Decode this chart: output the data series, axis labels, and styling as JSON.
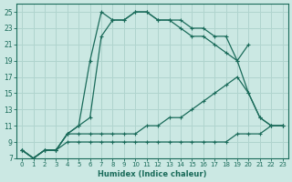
{
  "xlabel": "Humidex (Indice chaleur)",
  "bg_color": "#cbe8e3",
  "grid_color": "#b0d4ce",
  "line_color": "#1a6b5a",
  "xlim": [
    -0.5,
    23.5
  ],
  "ylim": [
    7,
    26
  ],
  "xticks": [
    0,
    1,
    2,
    3,
    4,
    5,
    6,
    7,
    8,
    9,
    10,
    11,
    12,
    13,
    14,
    15,
    16,
    17,
    18,
    19,
    20,
    21,
    22,
    23
  ],
  "yticks": [
    7,
    9,
    11,
    13,
    15,
    17,
    19,
    21,
    23,
    25
  ],
  "lines": [
    {
      "x": [
        0,
        1,
        2,
        3,
        4,
        5,
        6,
        7,
        8,
        9,
        10,
        11,
        12,
        13,
        14,
        15,
        16,
        17,
        18,
        19,
        20
      ],
      "y": [
        8,
        7,
        8,
        8,
        10,
        11,
        19,
        25,
        24,
        24,
        25,
        25,
        24,
        24,
        24,
        23,
        23,
        22,
        22,
        19,
        21
      ]
    },
    {
      "x": [
        0,
        1,
        2,
        3,
        4,
        5,
        6,
        7,
        8,
        9,
        10,
        11,
        12,
        13,
        14,
        15,
        16,
        17,
        18,
        19,
        20,
        21,
        22,
        23
      ],
      "y": [
        8,
        7,
        8,
        8,
        10,
        11,
        12,
        22,
        24,
        24,
        25,
        25,
        24,
        24,
        23,
        22,
        22,
        21,
        20,
        19,
        15,
        12,
        11,
        11
      ]
    },
    {
      "x": [
        0,
        1,
        2,
        3,
        4,
        5,
        6,
        7,
        8,
        9,
        10,
        11,
        12,
        13,
        14,
        15,
        16,
        17,
        18,
        19,
        20,
        21,
        22,
        23
      ],
      "y": [
        8,
        7,
        8,
        8,
        10,
        10,
        10,
        10,
        10,
        10,
        10,
        11,
        11,
        12,
        12,
        13,
        14,
        15,
        16,
        17,
        15,
        12,
        11,
        11
      ]
    },
    {
      "x": [
        0,
        1,
        2,
        3,
        4,
        5,
        6,
        7,
        8,
        9,
        10,
        11,
        12,
        13,
        14,
        15,
        16,
        17,
        18,
        19,
        20,
        21,
        22,
        23
      ],
      "y": [
        8,
        7,
        8,
        8,
        9,
        9,
        9,
        9,
        9,
        9,
        9,
        9,
        9,
        9,
        9,
        9,
        9,
        9,
        9,
        10,
        10,
        10,
        11,
        11
      ]
    }
  ]
}
